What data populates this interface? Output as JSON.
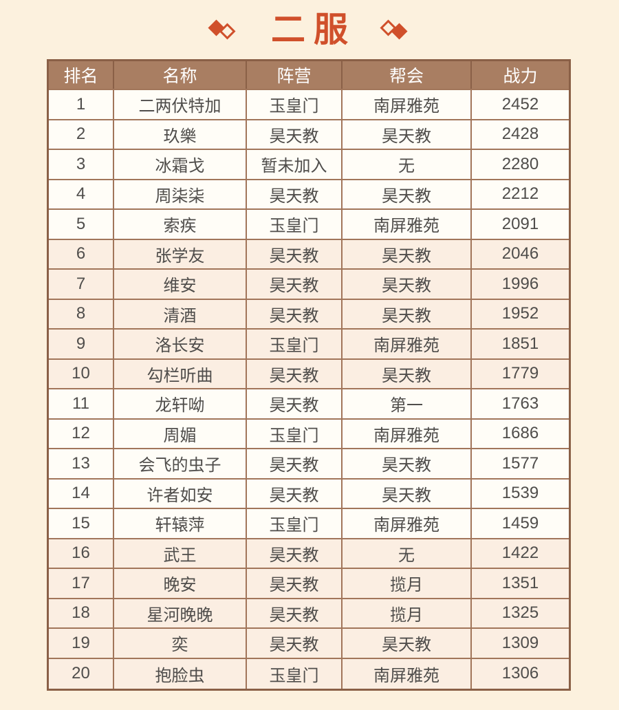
{
  "colors": {
    "page-bg": "#fcf1de",
    "accent": "#d0502b",
    "header-bg": "#a97e62",
    "header-text": "#ffffff",
    "border": "#a1755a",
    "border-dark": "#8a6047",
    "band-light": "#fffdf7",
    "band-tinted": "#fbeee2",
    "text": "#4f4d4b"
  },
  "ornaments": {
    "left": "double-diamond",
    "right": "double-diamond"
  },
  "chart_data": {
    "type": "table",
    "title": "二服",
    "columns": [
      "排名",
      "名称",
      "阵营",
      "帮会",
      "战力"
    ],
    "column_keys": [
      "rank",
      "name",
      "faction",
      "guild",
      "power"
    ],
    "band_group_size": 5,
    "rows": [
      [
        "1",
        "二两伏特加",
        "玉皇门",
        "南屏雅苑",
        "2452"
      ],
      [
        "2",
        "玖樂",
        "昊天教",
        "昊天教",
        "2428"
      ],
      [
        "3",
        "冰霜戈",
        "暂未加入",
        "无",
        "2280"
      ],
      [
        "4",
        "周柒柒",
        "昊天教",
        "昊天教",
        "2212"
      ],
      [
        "5",
        "索疾",
        "玉皇门",
        "南屏雅苑",
        "2091"
      ],
      [
        "6",
        "张学友",
        "昊天教",
        "昊天教",
        "2046"
      ],
      [
        "7",
        "维安",
        "昊天教",
        "昊天教",
        "1996"
      ],
      [
        "8",
        "清酒",
        "昊天教",
        "昊天教",
        "1952"
      ],
      [
        "9",
        "洛长安",
        "玉皇门",
        "南屏雅苑",
        "1851"
      ],
      [
        "10",
        "勾栏听曲",
        "昊天教",
        "昊天教",
        "1779"
      ],
      [
        "11",
        "龙轩呦",
        "昊天教",
        "第一",
        "1763"
      ],
      [
        "12",
        "周媚",
        "玉皇门",
        "南屏雅苑",
        "1686"
      ],
      [
        "13",
        "会飞的虫子",
        "昊天教",
        "昊天教",
        "1577"
      ],
      [
        "14",
        "许者如安",
        "昊天教",
        "昊天教",
        "1539"
      ],
      [
        "15",
        "轩辕萍",
        "玉皇门",
        "南屏雅苑",
        "1459"
      ],
      [
        "16",
        "武王",
        "昊天教",
        "无",
        "1422"
      ],
      [
        "17",
        "晚安",
        "昊天教",
        "揽月",
        "1351"
      ],
      [
        "18",
        "星河晚晚",
        "昊天教",
        "揽月",
        "1325"
      ],
      [
        "19",
        "奕",
        "昊天教",
        "昊天教",
        "1309"
      ],
      [
        "20",
        "抱脸虫",
        "玉皇门",
        "南屏雅苑",
        "1306"
      ]
    ]
  }
}
